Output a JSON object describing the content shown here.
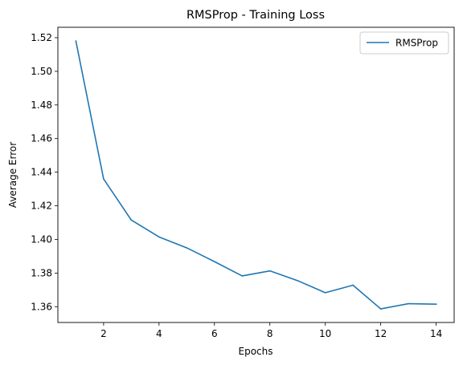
{
  "chart_data": {
    "type": "line",
    "title": "RMSProp - Training Loss",
    "xlabel": "Epochs",
    "ylabel": "Average Error",
    "x_ticks": [
      2,
      4,
      6,
      8,
      10,
      12,
      14
    ],
    "y_ticks": [
      1.36,
      1.38,
      1.4,
      1.42,
      1.44,
      1.46,
      1.48,
      1.5,
      1.52
    ],
    "y_tick_labels": [
      "1.36",
      "1.38",
      "1.40",
      "1.42",
      "1.44",
      "1.46",
      "1.48",
      "1.50",
      "1.52"
    ],
    "xlim": [
      0.35,
      14.65
    ],
    "ylim": [
      1.3506,
      1.5262
    ],
    "grid": false,
    "legend_position": "top-right",
    "series": [
      {
        "name": "RMSProp",
        "color": "#1f77b4",
        "x": [
          1,
          2,
          3,
          4,
          5,
          6,
          7,
          8,
          9,
          10,
          11,
          12,
          13,
          14
        ],
        "y": [
          1.518,
          1.436,
          1.4115,
          1.4015,
          1.395,
          1.3868,
          1.3783,
          1.3813,
          1.3755,
          1.3683,
          1.3728,
          1.3587,
          1.3618,
          1.3615
        ]
      }
    ]
  }
}
